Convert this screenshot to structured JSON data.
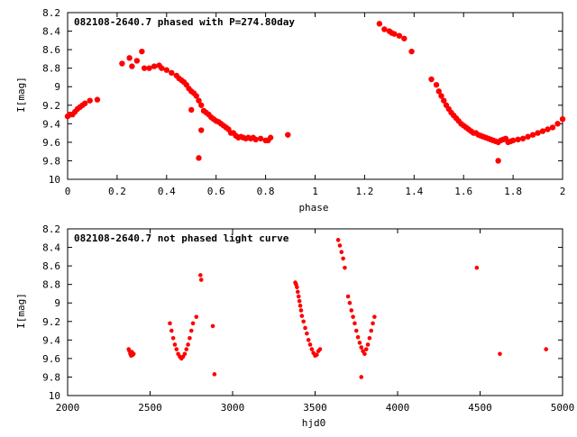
{
  "chart_data": [
    {
      "type": "scatter",
      "title": "082108-2640.7 phased with P=274.80day",
      "xlabel": "phase",
      "ylabel": "I[mag]",
      "xlim": [
        0,
        2
      ],
      "ylim": [
        8.2,
        10
      ],
      "y_inverted": true,
      "xticks": [
        0,
        0.2,
        0.4,
        0.6,
        0.8,
        1,
        1.2,
        1.4,
        1.6,
        1.8,
        2
      ],
      "xtick_labels": [
        "0",
        "0.2",
        "0.4",
        "0.6",
        "0.8",
        "1",
        "1.2",
        "1.4",
        "1.6",
        "1.8",
        "2"
      ],
      "yticks": [
        8.2,
        8.4,
        8.6,
        8.8,
        9,
        9.2,
        9.4,
        9.6,
        9.8,
        10
      ],
      "ytick_labels": [
        "8.2",
        "8.4",
        "8.6",
        "8.8",
        "9",
        "9.2",
        "9.4",
        "9.6",
        "9.8",
        "10"
      ],
      "grid": false,
      "marker_color": "#ff0000",
      "series": [
        {
          "x": [
            0.0,
            0.01,
            0.02,
            0.03,
            0.04,
            0.05,
            0.06,
            0.07,
            0.09,
            0.12,
            0.22,
            0.25,
            0.26,
            0.28,
            0.3,
            0.31,
            0.33,
            0.35,
            0.37,
            0.38,
            0.4,
            0.42,
            0.44,
            0.45,
            0.46,
            0.47,
            0.48,
            0.49,
            0.5,
            0.51,
            0.52,
            0.53,
            0.54,
            0.55,
            0.56,
            0.57,
            0.58,
            0.59,
            0.6,
            0.61,
            0.62,
            0.63,
            0.64,
            0.65,
            0.66,
            0.67,
            0.68,
            0.69,
            0.7,
            0.71,
            0.72,
            0.73,
            0.74,
            0.75,
            0.76,
            0.78,
            0.8,
            0.81,
            0.82,
            0.89,
            0.5,
            0.53,
            0.54,
            1.26,
            1.28,
            1.3,
            1.31,
            1.32,
            1.34,
            1.36,
            1.39,
            1.47,
            1.49,
            1.5,
            1.51,
            1.52,
            1.53,
            1.54,
            1.55,
            1.56,
            1.57,
            1.58,
            1.59,
            1.6,
            1.61,
            1.62,
            1.63,
            1.64,
            1.65,
            1.66,
            1.67,
            1.68,
            1.69,
            1.7,
            1.71,
            1.72,
            1.73,
            1.74,
            1.75,
            1.76,
            1.77,
            1.78,
            1.79,
            1.8,
            1.82,
            1.84,
            1.86,
            1.88,
            1.9,
            1.92,
            1.94,
            1.96,
            1.98,
            2.0,
            1.74
          ],
          "y": [
            9.32,
            9.3,
            9.3,
            9.27,
            9.24,
            9.22,
            9.2,
            9.18,
            9.15,
            9.14,
            8.75,
            8.69,
            8.78,
            8.72,
            8.62,
            8.8,
            8.8,
            8.78,
            8.77,
            8.8,
            8.82,
            8.85,
            8.88,
            8.91,
            8.93,
            8.95,
            8.98,
            9.02,
            9.05,
            9.07,
            9.1,
            9.15,
            9.2,
            9.26,
            9.28,
            9.3,
            9.33,
            9.35,
            9.37,
            9.38,
            9.4,
            9.42,
            9.44,
            9.46,
            9.5,
            9.5,
            9.53,
            9.55,
            9.54,
            9.55,
            9.56,
            9.55,
            9.56,
            9.55,
            9.57,
            9.56,
            9.58,
            9.58,
            9.55,
            9.52,
            9.25,
            9.77,
            9.47,
            8.32,
            8.38,
            8.4,
            8.42,
            8.43,
            8.45,
            8.48,
            8.62,
            8.92,
            8.98,
            9.05,
            9.1,
            9.15,
            9.2,
            9.24,
            9.28,
            9.31,
            9.34,
            9.37,
            9.4,
            9.42,
            9.44,
            9.46,
            9.48,
            9.5,
            9.5,
            9.52,
            9.53,
            9.54,
            9.55,
            9.56,
            9.57,
            9.58,
            9.59,
            9.6,
            9.58,
            9.57,
            9.56,
            9.6,
            9.59,
            9.58,
            9.57,
            9.56,
            9.54,
            9.52,
            9.5,
            9.48,
            9.46,
            9.44,
            9.4,
            9.35,
            9.8
          ]
        }
      ]
    },
    {
      "type": "scatter",
      "title": "082108-2640.7 not phased light curve",
      "xlabel": "hjd0",
      "ylabel": "I[mag]",
      "xlim": [
        2000,
        5000
      ],
      "ylim": [
        8.2,
        10
      ],
      "y_inverted": true,
      "xticks": [
        2000,
        2500,
        3000,
        3500,
        4000,
        4500,
        5000
      ],
      "xtick_labels": [
        "2000",
        "2500",
        "3000",
        "3500",
        "4000",
        "4500",
        "5000"
      ],
      "yticks": [
        8.2,
        8.4,
        8.6,
        8.8,
        9,
        9.2,
        9.4,
        9.6,
        9.8,
        10
      ],
      "ytick_labels": [
        "8.2",
        "8.4",
        "8.6",
        "8.8",
        "9",
        "9.2",
        "9.4",
        "9.6",
        "9.8",
        "10"
      ],
      "grid": false,
      "marker_color": "#ff0000",
      "series": [
        {
          "x": [
            2370,
            2375,
            2380,
            2385,
            2390,
            2395,
            2400,
            2620,
            2630,
            2640,
            2650,
            2660,
            2670,
            2680,
            2690,
            2700,
            2710,
            2720,
            2730,
            2740,
            2750,
            2760,
            2780,
            2805,
            2810,
            2880,
            2890,
            3380,
            3385,
            3390,
            3395,
            3400,
            3405,
            3410,
            3415,
            3420,
            3430,
            3440,
            3450,
            3460,
            3470,
            3480,
            3490,
            3500,
            3510,
            3520,
            3530,
            3640,
            3650,
            3660,
            3670,
            3680,
            3700,
            3710,
            3720,
            3730,
            3740,
            3750,
            3760,
            3770,
            3780,
            3790,
            3800,
            3810,
            3820,
            3830,
            3840,
            3850,
            3860,
            3780,
            4480,
            4620,
            4900
          ],
          "y": [
            9.5,
            9.52,
            9.55,
            9.57,
            9.53,
            9.56,
            9.55,
            9.22,
            9.3,
            9.38,
            9.45,
            9.5,
            9.55,
            9.58,
            9.6,
            9.58,
            9.55,
            9.5,
            9.45,
            9.38,
            9.3,
            9.22,
            9.15,
            8.7,
            8.75,
            9.25,
            9.77,
            8.78,
            8.8,
            8.83,
            8.88,
            8.93,
            8.98,
            9.03,
            9.08,
            9.14,
            9.2,
            9.27,
            9.33,
            9.4,
            9.45,
            9.5,
            9.54,
            9.57,
            9.56,
            9.52,
            9.5,
            8.32,
            8.38,
            8.45,
            8.52,
            8.62,
            8.93,
            9.0,
            9.08,
            9.15,
            9.22,
            9.3,
            9.37,
            9.43,
            9.48,
            9.52,
            9.55,
            9.5,
            9.45,
            9.38,
            9.3,
            9.22,
            9.15,
            9.8,
            8.62,
            9.55,
            9.5
          ]
        }
      ]
    }
  ]
}
